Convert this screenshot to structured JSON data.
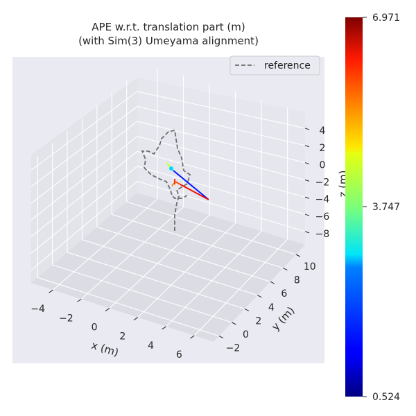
{
  "chart_data": {
    "type": "line3d",
    "title_line1": "APE w.r.t. translation part (m)",
    "title_line2": "(with Sim(3) Umeyama alignment)",
    "xlabel": "x (m)",
    "ylabel": "y (m)",
    "zlabel": "z (m)",
    "x_ticks": [
      "−4",
      "−2",
      "0",
      "2",
      "4",
      "6"
    ],
    "y_ticks": [
      "−2",
      "0",
      "2",
      "4",
      "6",
      "8",
      "10"
    ],
    "z_ticks": [
      "4",
      "2",
      "0",
      "−2",
      "−4",
      "−6",
      "−8"
    ],
    "legend": {
      "label": "reference",
      "placement": "upper right",
      "style": "dashed",
      "color": "#6e6e6e"
    },
    "colorbar": {
      "colormap": "jet",
      "min_label": "0.524",
      "mid_label": "3.747",
      "max_label": "6.971",
      "min": 0.524,
      "mid": 3.747,
      "max": 6.971
    },
    "background": "#eaeaf2",
    "grid": true
  }
}
